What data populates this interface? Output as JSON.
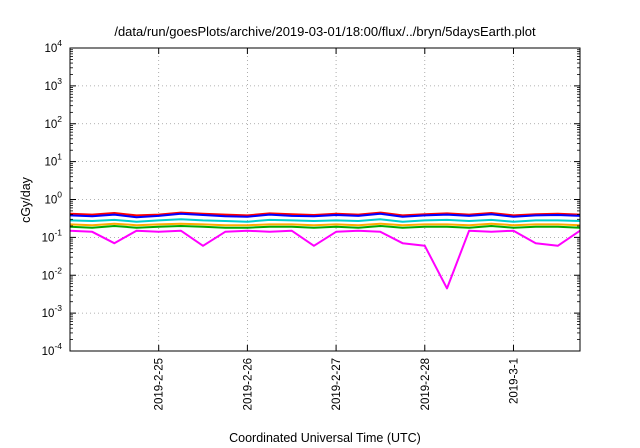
{
  "chart_data": {
    "type": "line",
    "title": "/data/run/goesPlots/archive/2019-03-01/18:00/flux/../bryn/5daysEarth.plot",
    "xlabel": "Coordinated Universal Time (UTC)",
    "ylabel": "cGy/day",
    "yscale": "log",
    "ylim": [
      0.0001,
      10000
    ],
    "xlim": [
      "2019-02-24 00:00",
      "2019-03-01 18:00"
    ],
    "ytick_labels": [
      {
        "base": "10",
        "exp": "-4",
        "value": 0.0001
      },
      {
        "base": "10",
        "exp": "-3",
        "value": 0.001
      },
      {
        "base": "10",
        "exp": "-2",
        "value": 0.01
      },
      {
        "base": "10",
        "exp": "-1",
        "value": 0.1
      },
      {
        "base": "10",
        "exp": "0",
        "value": 1
      },
      {
        "base": "10",
        "exp": "1",
        "value": 10
      },
      {
        "base": "10",
        "exp": "2",
        "value": 100
      },
      {
        "base": "10",
        "exp": "3",
        "value": 1000
      },
      {
        "base": "10",
        "exp": "4",
        "value": 10000
      }
    ],
    "xtick_labels": [
      {
        "label": "2019-2-25",
        "value": "2019-02-25 00:00"
      },
      {
        "label": "2019-2-26",
        "value": "2019-02-26 00:00"
      },
      {
        "label": "2019-2-27",
        "value": "2019-02-27 00:00"
      },
      {
        "label": "2019-2-28",
        "value": "2019-02-28 00:00"
      },
      {
        "label": "2019-3-1",
        "value": "2019-03-01 00:00"
      }
    ],
    "grid": true,
    "legend": "none",
    "x": [
      "2019-02-24 00:00",
      "2019-02-24 06:00",
      "2019-02-24 12:00",
      "2019-02-24 18:00",
      "2019-02-25 00:00",
      "2019-02-25 06:00",
      "2019-02-25 12:00",
      "2019-02-25 18:00",
      "2019-02-26 00:00",
      "2019-02-26 06:00",
      "2019-02-26 12:00",
      "2019-02-26 18:00",
      "2019-02-27 00:00",
      "2019-02-27 06:00",
      "2019-02-27 12:00",
      "2019-02-27 18:00",
      "2019-02-28 00:00",
      "2019-02-28 06:00",
      "2019-02-28 12:00",
      "2019-02-28 18:00",
      "2019-03-01 00:00",
      "2019-03-01 06:00",
      "2019-03-01 12:00",
      "2019-03-01 18:00"
    ],
    "series": [
      {
        "color": "#ff0000",
        "values": [
          0.42,
          0.4,
          0.44,
          0.38,
          0.4,
          0.45,
          0.42,
          0.4,
          0.38,
          0.43,
          0.41,
          0.39,
          0.42,
          0.4,
          0.45,
          0.38,
          0.41,
          0.43,
          0.4,
          0.44,
          0.38,
          0.41,
          0.42,
          0.4
        ]
      },
      {
        "color": "#0000ff",
        "values": [
          0.38,
          0.36,
          0.4,
          0.34,
          0.37,
          0.42,
          0.39,
          0.36,
          0.35,
          0.4,
          0.37,
          0.36,
          0.39,
          0.37,
          0.42,
          0.35,
          0.38,
          0.4,
          0.37,
          0.41,
          0.35,
          0.38,
          0.39,
          0.37
        ]
      },
      {
        "color": "#00cccc",
        "values": [
          0.28,
          0.27,
          0.29,
          0.26,
          0.28,
          0.3,
          0.28,
          0.27,
          0.26,
          0.29,
          0.28,
          0.27,
          0.28,
          0.27,
          0.3,
          0.26,
          0.28,
          0.29,
          0.27,
          0.29,
          0.26,
          0.28,
          0.28,
          0.27
        ]
      },
      {
        "color": "#ffaa00",
        "values": [
          0.22,
          0.21,
          0.23,
          0.21,
          0.22,
          0.23,
          0.22,
          0.21,
          0.21,
          0.22,
          0.22,
          0.21,
          0.22,
          0.21,
          0.23,
          0.21,
          0.22,
          0.22,
          0.21,
          0.23,
          0.21,
          0.22,
          0.22,
          0.21
        ]
      },
      {
        "color": "#00aa00",
        "values": [
          0.19,
          0.18,
          0.2,
          0.18,
          0.19,
          0.2,
          0.19,
          0.18,
          0.18,
          0.19,
          0.19,
          0.18,
          0.19,
          0.18,
          0.2,
          0.18,
          0.19,
          0.19,
          0.18,
          0.2,
          0.18,
          0.19,
          0.19,
          0.18
        ]
      },
      {
        "color": "#ff00ff",
        "values": [
          0.15,
          0.14,
          0.07,
          0.15,
          0.14,
          0.15,
          0.06,
          0.14,
          0.15,
          0.14,
          0.15,
          0.06,
          0.14,
          0.15,
          0.14,
          0.07,
          0.06,
          0.0045,
          0.15,
          0.14,
          0.15,
          0.07,
          0.06,
          0.15
        ]
      }
    ]
  }
}
